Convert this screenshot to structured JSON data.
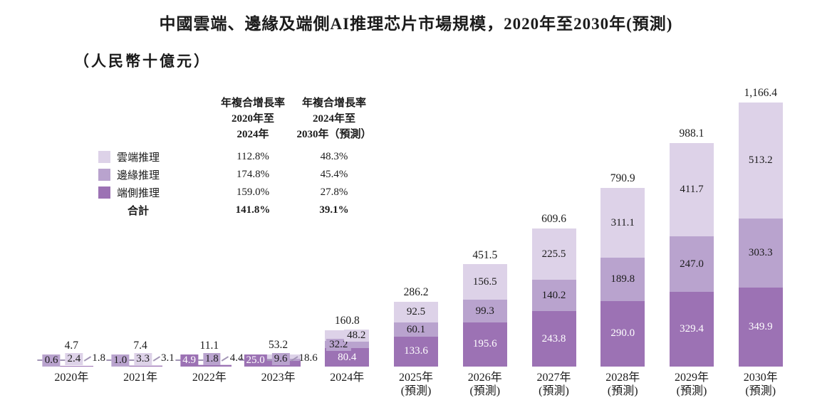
{
  "title": "中國雲端、邊緣及端側AI推理芯片市場規模，2020年至2030年(預測)",
  "subtitle": "（人民幣十億元）",
  "colors": {
    "cloud": "#DDD2E8",
    "edge": "#B9A3CE",
    "device": "#9C72B4",
    "text": "#1B1B1B",
    "leader_line": "#A295B5"
  },
  "legend": [
    {
      "key": "cloud",
      "label": "雲端推理"
    },
    {
      "key": "edge",
      "label": "邊緣推理"
    },
    {
      "key": "device",
      "label": "端側推理"
    }
  ],
  "cagr_table": {
    "col1_header": [
      "年複合增長率",
      "2020年至",
      "2024年"
    ],
    "col2_header": [
      "年複合增長率",
      "2024年至",
      "2030年（預測）"
    ],
    "rows": [
      {
        "label": "雲端推理",
        "col1": "112.8%",
        "col2": "48.3%"
      },
      {
        "label": "邊緣推理",
        "col1": "174.8%",
        "col2": "45.4%"
      },
      {
        "label": "端側推理",
        "col1": "159.0%",
        "col2": "27.8%"
      }
    ],
    "total_row": {
      "label": "合計",
      "col1": "141.8%",
      "col2": "39.1%"
    }
  },
  "chart_data": {
    "type": "bar",
    "stacked": true,
    "unit": "人民幣十億元",
    "ylim": [
      0,
      1200
    ],
    "grid": false,
    "legend_position": "left",
    "categories": [
      {
        "label": "2020年",
        "sub": ""
      },
      {
        "label": "2021年",
        "sub": ""
      },
      {
        "label": "2022年",
        "sub": ""
      },
      {
        "label": "2023年",
        "sub": ""
      },
      {
        "label": "2024年",
        "sub": ""
      },
      {
        "label": "2025年",
        "sub": "(預測)"
      },
      {
        "label": "2026年",
        "sub": "(預測)"
      },
      {
        "label": "2027年",
        "sub": "(預測)"
      },
      {
        "label": "2028年",
        "sub": "(預測)"
      },
      {
        "label": "2029年",
        "sub": "(預測)"
      },
      {
        "label": "2030年",
        "sub": "(預測)"
      }
    ],
    "series": [
      {
        "key": "cloud",
        "name": "雲端推理",
        "color": "#DDD2E8",
        "values": [
          2.4,
          3.3,
          4.4,
          18.6,
          48.2,
          92.5,
          156.5,
          225.5,
          311.1,
          411.7,
          513.2
        ]
      },
      {
        "key": "edge",
        "name": "邊緣推理",
        "color": "#B9A3CE",
        "values": [
          0.6,
          1.0,
          1.8,
          9.6,
          32.2,
          60.1,
          99.3,
          140.2,
          189.8,
          247.0,
          303.3
        ]
      },
      {
        "key": "device",
        "name": "端側推理",
        "color": "#9C72B4",
        "values": [
          1.8,
          3.1,
          4.9,
          25.0,
          80.4,
          133.6,
          195.6,
          243.8,
          290.0,
          329.4,
          349.9
        ]
      }
    ],
    "stack_order_bottom_to_top": [
      "device",
      "edge",
      "cloud"
    ],
    "totals_display": [
      "4.7",
      "7.4",
      "11.1",
      "53.2",
      "160.8",
      "286.2",
      "451.5",
      "609.6",
      "790.9",
      "988.1",
      "1,166.4"
    ],
    "side_labels": {
      "0": {
        "chips": [
          [
            "edge",
            "0.6"
          ],
          [
            "cloud",
            "2.4"
          ]
        ],
        "leader": [
          "device",
          "1.8"
        ]
      },
      "1": {
        "chips": [
          [
            "edge",
            "1.0"
          ],
          [
            "cloud",
            "3.3"
          ]
        ],
        "leader": [
          "device",
          "3.1"
        ]
      },
      "2": {
        "chips": [
          [
            "device",
            "4.9"
          ],
          [
            "edge",
            "1.8"
          ]
        ],
        "leader": [
          "cloud",
          "4.4"
        ]
      },
      "3": {
        "chips": [
          [
            "device",
            "25.0"
          ],
          [
            "edge",
            "9.6"
          ]
        ],
        "leader": [
          "cloud",
          "18.6"
        ]
      }
    }
  }
}
